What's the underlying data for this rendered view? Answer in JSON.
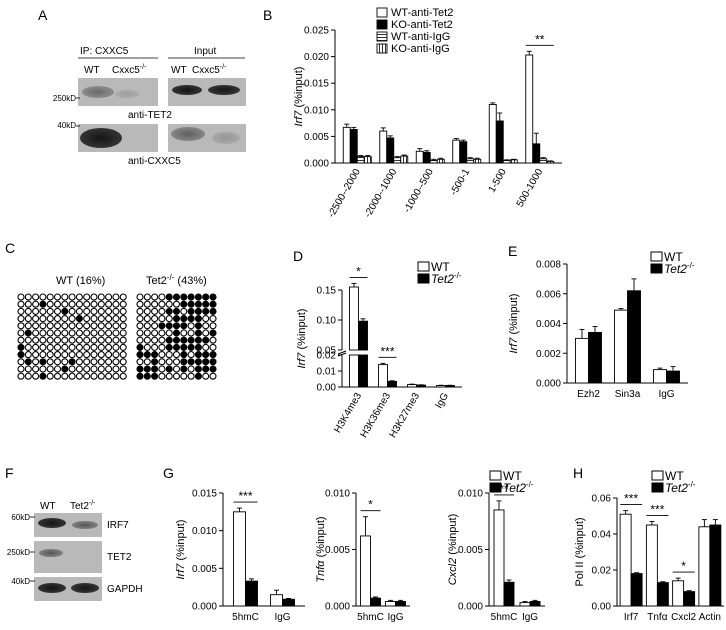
{
  "panels": {
    "A": {
      "letter": "A",
      "ip_label": "IP: CXXC5",
      "input_label": "Input",
      "lanes": [
        "WT",
        "Cxxc5",
        "WT",
        "Cxxc5"
      ],
      "ko_sup": "-/-",
      "markers_top": [
        "250kD"
      ],
      "markers_bottom": [
        "40kD"
      ],
      "blot_top_label": "anti-TET2",
      "blot_bottom_label": "anti-CXXC5"
    },
    "C": {
      "letter": "C",
      "wt_label": "WT (16%)",
      "ko_label_prefix": "Tet2",
      "ko_sup": "-/-",
      "ko_label_suffix": " (43%)"
    },
    "F": {
      "letter": "F",
      "lanes": [
        "WT",
        "Tet2"
      ],
      "ko_sup": "-/-",
      "markers": [
        "60kD",
        "250kD",
        "40kD"
      ],
      "rows": [
        "IRF7",
        "TET2",
        "GAPDH"
      ]
    }
  },
  "chart_data": [
    {
      "panel": "B",
      "type": "bar",
      "ylabel_gene": "Irf7",
      "ylabel_unit": " (%input)",
      "ylim": [
        0,
        0.025
      ],
      "yticks": [
        "0.000",
        "0.005",
        "0.010",
        "0.015",
        "0.020",
        "0.025"
      ],
      "categories": [
        "-2500--2000",
        "-2000--1000",
        "-1000--500",
        "-500-1",
        "1-500",
        "500-1000"
      ],
      "legend_position": "top-left",
      "series": [
        {
          "name": "WT-anti-Tet2",
          "values": [
            0.0067,
            0.006,
            0.0022,
            0.0043,
            0.011,
            0.0203
          ],
          "errors": [
            0.0006,
            0.0006,
            0.0005,
            0.0003,
            0.0003,
            0.0007
          ],
          "fill": "white"
        },
        {
          "name": "KO-anti-Tet2",
          "values": [
            0.0063,
            0.0047,
            0.002,
            0.004,
            0.0079,
            0.0036
          ],
          "errors": [
            0.0004,
            0.0004,
            0.0003,
            0.0003,
            0.0015,
            0.002
          ],
          "fill": "black"
        },
        {
          "name": "WT-anti-IgG",
          "values": [
            0.0012,
            0.001,
            0.0005,
            0.0008,
            0.0005,
            0.0008
          ],
          "errors": [
            0.0002,
            0.0002,
            0.0002,
            0.0002,
            0.0001,
            0.0002
          ],
          "fill": "hstripe"
        },
        {
          "name": "KO-anti-IgG",
          "values": [
            0.0012,
            0.0013,
            0.0007,
            0.0007,
            0.0006,
            0.0003
          ],
          "errors": [
            0.0002,
            0.0002,
            0.0002,
            0.0002,
            0.0001,
            0.0001
          ],
          "fill": "vstripe"
        }
      ],
      "annotations": [
        {
          "text": "**",
          "group": 5
        }
      ]
    },
    {
      "panel": "D",
      "type": "bar",
      "ylabel_gene": "Irf7",
      "ylabel_unit": " (%input)",
      "axis_break": true,
      "lower_range": [
        0,
        0.02
      ],
      "upper_range": [
        0.05,
        0.15
      ],
      "yticks_lower": [
        "0.00",
        "0.01",
        "0.02"
      ],
      "yticks_upper": [
        "0.05",
        "0.10",
        "0.15"
      ],
      "categories": [
        "H3K4me3",
        "H3K36me3",
        "H3K27me3",
        "IgG"
      ],
      "legend_position": "top-right",
      "series": [
        {
          "name": "WT",
          "values": [
            0.155,
            0.014,
            0.0015,
            0.0009
          ],
          "errors": [
            0.006,
            0.0008,
            0.0003,
            0.0002
          ],
          "fill": "white"
        },
        {
          "name": "Tet2",
          "values": [
            0.098,
            0.0035,
            0.0012,
            0.0009
          ],
          "errors": [
            0.004,
            0.0004,
            0.0002,
            0.0002
          ],
          "fill": "black"
        }
      ],
      "annotations": [
        {
          "text": "*",
          "group": 0
        },
        {
          "text": "***",
          "group": 1
        }
      ]
    },
    {
      "panel": "E",
      "type": "bar",
      "ylabel_gene": "Irf7",
      "ylabel_unit": " (%input)",
      "ylim": [
        0,
        0.008
      ],
      "yticks": [
        "0.000",
        "0.002",
        "0.004",
        "0.006",
        "0.008"
      ],
      "categories": [
        "Ezh2",
        "Sin3a",
        "IgG"
      ],
      "legend_position": "top-right",
      "series": [
        {
          "name": "WT",
          "values": [
            0.003,
            0.0049,
            0.0009
          ],
          "errors": [
            0.0006,
            0.0001,
            0.0001
          ],
          "fill": "white"
        },
        {
          "name": "Tet2",
          "values": [
            0.0034,
            0.0062,
            0.0008
          ],
          "errors": [
            0.0004,
            0.0008,
            0.0003
          ],
          "fill": "black"
        }
      ],
      "annotations": []
    },
    {
      "panel": "G1",
      "type": "bar",
      "ylabel_gene": "Irf7",
      "ylabel_unit": " (%input)",
      "ylim": [
        0,
        0.015
      ],
      "yticks": [
        "0.000",
        "0.005",
        "0.010",
        "0.015"
      ],
      "categories": [
        "5hmC",
        "IgG"
      ],
      "series": [
        {
          "name": "WT",
          "values": [
            0.0125,
            0.0015
          ],
          "errors": [
            0.0005,
            0.0006
          ],
          "fill": "white"
        },
        {
          "name": "Tet2",
          "values": [
            0.0033,
            0.0009
          ],
          "errors": [
            0.0003,
            0.0001
          ],
          "fill": "black"
        }
      ],
      "annotations": [
        {
          "text": "***",
          "group": 0
        }
      ]
    },
    {
      "panel": "G2",
      "type": "bar",
      "ylabel_gene": "Tnfα",
      "ylabel_unit": " (%input)",
      "ylim": [
        0,
        0.01
      ],
      "yticks": [
        "0.000",
        "0.005",
        "0.010"
      ],
      "categories": [
        "5hmC",
        "IgG"
      ],
      "series": [
        {
          "name": "WT",
          "values": [
            0.0062,
            0.0004
          ],
          "errors": [
            0.0017,
            0.0001
          ],
          "fill": "white"
        },
        {
          "name": "Tet2",
          "values": [
            0.0007,
            0.0004
          ],
          "errors": [
            0.0001,
            0.0001
          ],
          "fill": "black"
        }
      ],
      "annotations": [
        {
          "text": "*",
          "group": 0
        }
      ]
    },
    {
      "panel": "G3",
      "type": "bar",
      "ylabel_gene": "Cxcl2",
      "ylabel_unit": " (%input)",
      "ylim": [
        0,
        0.01
      ],
      "yticks": [
        "0.000",
        "0.005",
        "0.010"
      ],
      "categories": [
        "5hmC",
        "IgG"
      ],
      "legend_position": "top-right",
      "series": [
        {
          "name": "WT",
          "values": [
            0.0085,
            0.0003
          ],
          "errors": [
            0.0008,
            0.0001
          ],
          "fill": "white"
        },
        {
          "name": "Tet2",
          "values": [
            0.0021,
            0.0004
          ],
          "errors": [
            0.0002,
            0.0001
          ],
          "fill": "black"
        }
      ],
      "annotations": [
        {
          "text": "**",
          "group": 0
        }
      ]
    },
    {
      "panel": "H",
      "type": "bar",
      "ylabel_gene": "",
      "ylabel_unit": "Pol II (%input)",
      "ylim": [
        0,
        0.06
      ],
      "yticks": [
        "0.00",
        "0.02",
        "0.04",
        "0.06"
      ],
      "categories": [
        "Irf7",
        "Tnfα",
        "Cxcl2",
        "Actin"
      ],
      "legend_position": "top-right",
      "series": [
        {
          "name": "WT",
          "values": [
            0.051,
            0.045,
            0.014,
            0.044
          ],
          "errors": [
            0.002,
            0.002,
            0.0015,
            0.004
          ],
          "fill": "white"
        },
        {
          "name": "Tet2",
          "values": [
            0.018,
            0.013,
            0.008,
            0.045
          ],
          "errors": [
            0.0005,
            0.0005,
            0.0005,
            0.003
          ],
          "fill": "black"
        }
      ],
      "annotations": [
        {
          "text": "***",
          "group": 0
        },
        {
          "text": "***",
          "group": 1
        },
        {
          "text": "*",
          "group": 2
        }
      ]
    }
  ]
}
